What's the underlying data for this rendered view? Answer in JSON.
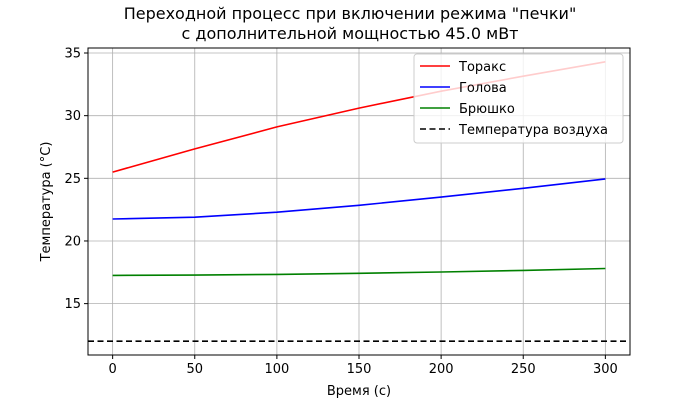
{
  "chart_data": {
    "type": "line",
    "title": "Переходной процесс при включении режима \"печки\"",
    "subtitle": "с дополнительной мощностью 45.0 мВт",
    "xlabel": "Время (с)",
    "ylabel": "Температура (°C)",
    "xlim": [
      -15,
      315
    ],
    "ylim": [
      10.9,
      35.4
    ],
    "xticks": [
      0,
      50,
      100,
      150,
      200,
      250,
      300
    ],
    "yticks": [
      15,
      20,
      25,
      30,
      35
    ],
    "grid": true,
    "legend_position": "upper right",
    "x": [
      0,
      50,
      100,
      150,
      200,
      250,
      300
    ],
    "series": [
      {
        "name": "Торакс",
        "color": "#ff0000",
        "style": "solid",
        "values": [
          25.5,
          27.35,
          29.1,
          30.6,
          31.95,
          33.15,
          34.3
        ]
      },
      {
        "name": "Голова",
        "color": "#0000ff",
        "style": "solid",
        "values": [
          21.75,
          21.9,
          22.3,
          22.85,
          23.5,
          24.2,
          24.95
        ]
      },
      {
        "name": "Брюшко",
        "color": "#008000",
        "style": "solid",
        "values": [
          17.25,
          17.28,
          17.33,
          17.42,
          17.52,
          17.65,
          17.8
        ]
      },
      {
        "name": "Температура воздуха",
        "color": "#000000",
        "style": "dashed",
        "values": [
          12.0,
          12.0,
          12.0,
          12.0,
          12.0,
          12.0,
          12.0
        ]
      }
    ]
  }
}
